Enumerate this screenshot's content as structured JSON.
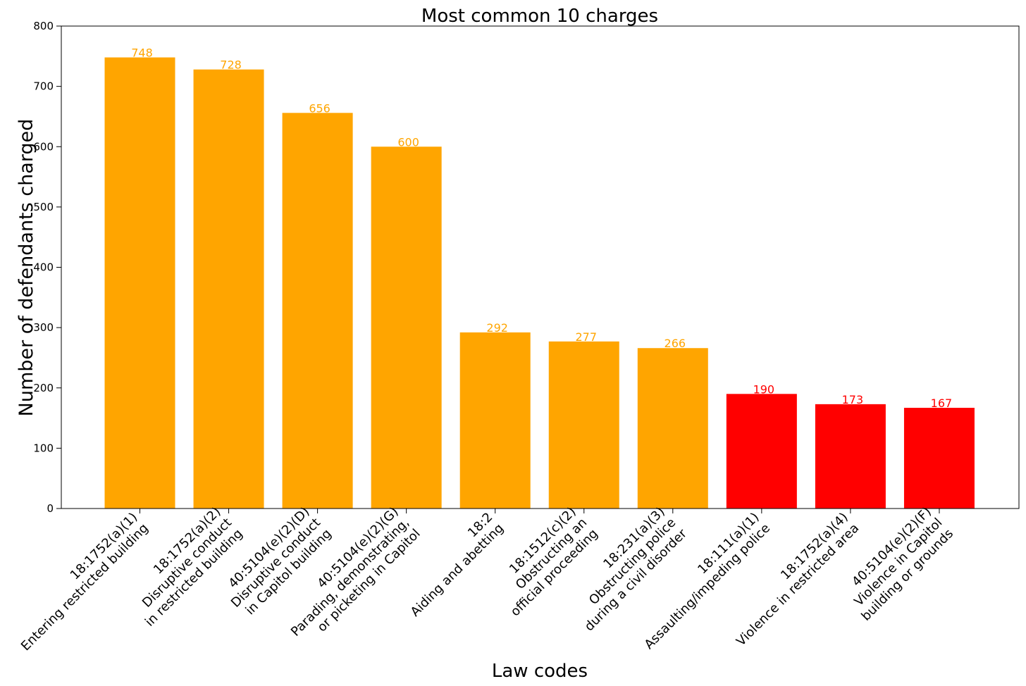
{
  "chart_data": {
    "type": "bar",
    "title": "Most common 10 charges",
    "xlabel": "Law codes",
    "ylabel": "Number of defendants charged",
    "ylim": [
      0,
      800
    ],
    "yticks": [
      0,
      100,
      200,
      300,
      400,
      500,
      600,
      700,
      800
    ],
    "grid": false,
    "legend": "none",
    "categories": [
      [
        "18:1752(a)(1)",
        "Entering restricted building"
      ],
      [
        "18:1752(a)(2)",
        "Disruptive conduct",
        "in restricted building"
      ],
      [
        "40:5104(e)(2)(D)",
        "Disruptive conduct",
        "in Capitol building"
      ],
      [
        "40:5104(e)(2)(G)",
        "Parading, demonstrating,",
        "or picketing in Capitol"
      ],
      [
        "18:2",
        "Aiding and abetting"
      ],
      [
        "18:1512(c)(2)",
        "Obstructing an",
        "official proceeding"
      ],
      [
        "18:231(a)(3)",
        "Obstructing police",
        "during a civil disorder"
      ],
      [
        "18:111(a)(1)",
        "Assaulting/impeding police"
      ],
      [
        "18:1752(a)(4)",
        "Violence in restricted area"
      ],
      [
        "40:5104(e)(2)(F)",
        "Violence in Capitol",
        "building or grounds"
      ]
    ],
    "values": [
      748,
      728,
      656,
      600,
      292,
      277,
      266,
      190,
      173,
      167
    ],
    "colors": [
      "#FFA500",
      "#FFA500",
      "#FFA500",
      "#FFA500",
      "#FFA500",
      "#FFA500",
      "#FFA500",
      "#FF0000",
      "#FF0000",
      "#FF0000"
    ]
  }
}
